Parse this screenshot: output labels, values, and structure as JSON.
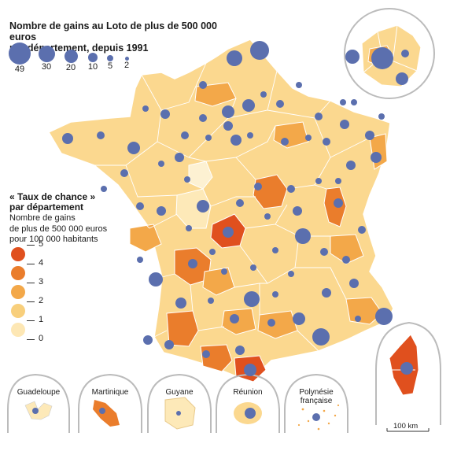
{
  "title": {
    "line1": "Nombre de gains au Loto de plus de 500 000 euros",
    "line2": "par département, depuis 1991"
  },
  "size_legend": [
    {
      "value": "49",
      "label": "49"
    },
    {
      "value": "30",
      "label": "30"
    },
    {
      "value": "20",
      "label": "20"
    },
    {
      "value": "10",
      "label": "10"
    },
    {
      "value": "5",
      "label": "5"
    },
    {
      "value": "2",
      "label": "2"
    }
  ],
  "rate_legend": {
    "title_line1": "« Taux de chance »",
    "title_line2": "par département",
    "sub_line1": "Nombre de gains",
    "sub_line2": "de plus de 500 000 euros",
    "sub_line3": "pour 100 000 habitants",
    "classes": [
      {
        "label": "5",
        "color": "#e0501e"
      },
      {
        "label": "4",
        "color": "#ea7d2c"
      },
      {
        "label": "3",
        "color": "#f3a849"
      },
      {
        "label": "2",
        "color": "#f8cf7c"
      },
      {
        "label": "1",
        "color": "#fde7b4"
      },
      {
        "label": "0",
        "color": "#fdf3d8"
      }
    ]
  },
  "colors": {
    "bubble": "#5b6fae",
    "land_base": "#fbd88f",
    "border": "#ffffff",
    "inset_frame": "#bbbbbb"
  },
  "insets": {
    "guadeloupe": "Guadeloupe",
    "martinique": "Martinique",
    "guyane": "Guyane",
    "reunion": "Réunion",
    "polynesie_line1": "Polynésie",
    "polynesie_line2": "française"
  },
  "scale": {
    "label": "100 km"
  }
}
